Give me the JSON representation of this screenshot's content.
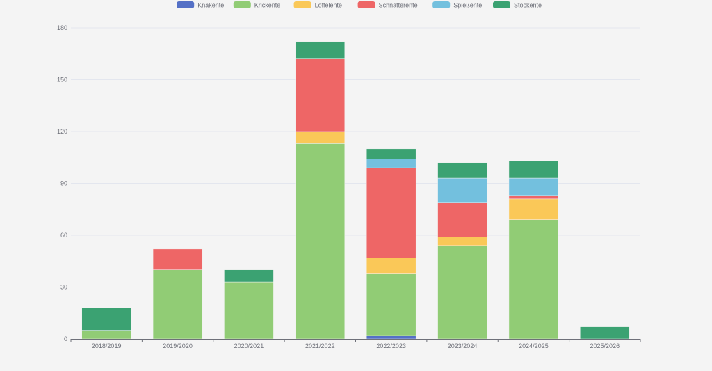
{
  "chart_data": {
    "type": "bar",
    "stacked": true,
    "title": "",
    "xlabel": "",
    "ylabel": "",
    "ylim": [
      0,
      180
    ],
    "yticks": [
      0,
      30,
      60,
      90,
      120,
      150,
      180
    ],
    "grid": true,
    "legend_position": "top-center",
    "categories": [
      "2018/2019",
      "2019/2020",
      "2020/2021",
      "2021/2022",
      "2022/2023",
      "2023/2024",
      "2024/2025",
      "2025/2026"
    ],
    "series": [
      {
        "name": "Knäkente",
        "color": "#5470c6",
        "values": [
          0,
          0,
          0,
          0,
          2,
          0,
          0,
          0
        ]
      },
      {
        "name": "Krickente",
        "color": "#91cc75",
        "values": [
          5,
          40,
          33,
          113,
          36,
          54,
          69,
          0
        ]
      },
      {
        "name": "Löffelente",
        "color": "#fac858",
        "values": [
          0,
          0,
          0,
          7,
          9,
          5,
          12,
          0
        ]
      },
      {
        "name": "Schnatterente",
        "color": "#ee6666",
        "values": [
          0,
          12,
          0,
          42,
          52,
          20,
          2,
          0
        ]
      },
      {
        "name": "Spießente",
        "color": "#73c0de",
        "values": [
          0,
          0,
          0,
          0,
          5,
          14,
          10,
          0
        ]
      },
      {
        "name": "Stockente",
        "color": "#3ba272",
        "values": [
          13,
          0,
          7,
          10,
          6,
          9,
          10,
          7
        ]
      }
    ]
  }
}
